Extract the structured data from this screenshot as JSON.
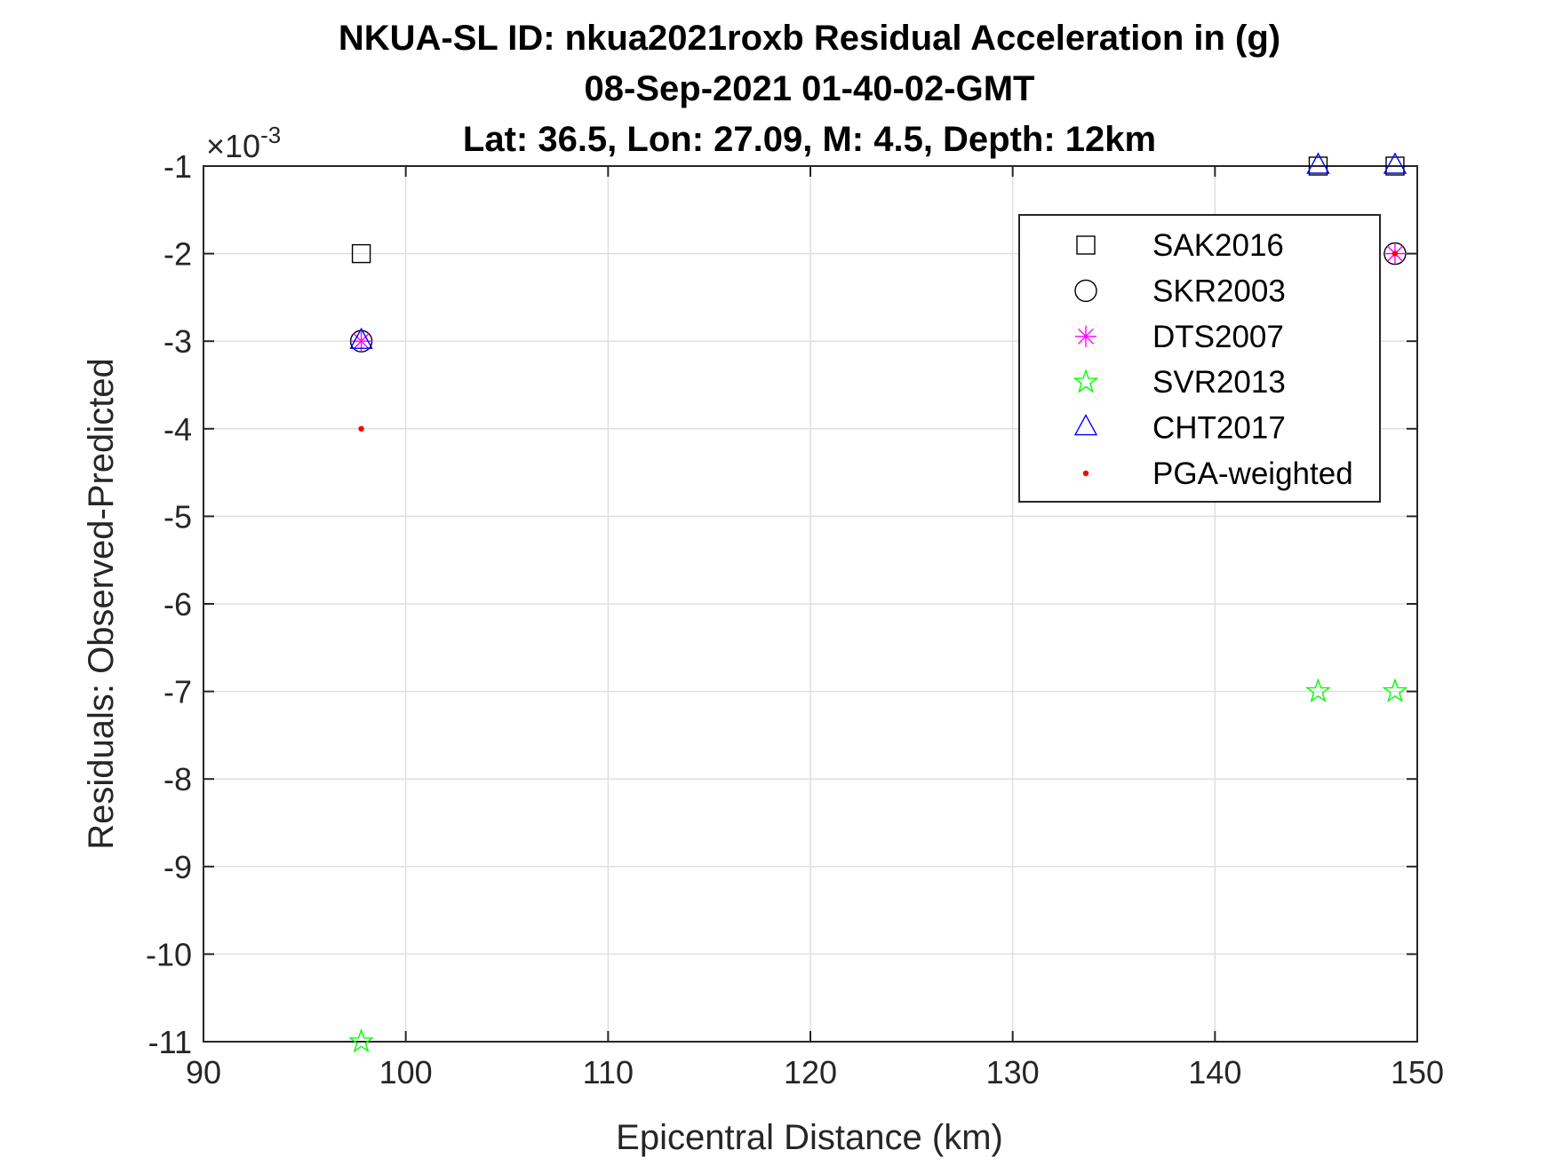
{
  "chart_data": {
    "type": "scatter",
    "title_lines": [
      "NKUA-SL ID: nkua2021roxb Residual Acceleration in (g)",
      "08-Sep-2021 01-40-02-GMT",
      "Lat: 36.5, Lon: 27.09, M: 4.5, Depth: 12km"
    ],
    "xlabel": "Epicentral Distance (km)",
    "ylabel": "Residuals: Observed-Predicted",
    "y_exponent_label": "×10",
    "y_exponent": "-3",
    "xlim": [
      90,
      150
    ],
    "ylim": [
      -11,
      -1
    ],
    "x_ticks": [
      90,
      100,
      110,
      120,
      130,
      140,
      150
    ],
    "y_ticks": [
      -1,
      -2,
      -3,
      -4,
      -5,
      -6,
      -7,
      -8,
      -9,
      -10,
      -11
    ],
    "y_scale_factor": 0.001,
    "grid": true,
    "legend_position": "top-right",
    "series": [
      {
        "name": "SAK2016",
        "marker": "square",
        "color": "#000000",
        "points": [
          [
            97.8,
            -2
          ],
          [
            145.1,
            -1
          ],
          [
            148.9,
            -1
          ]
        ]
      },
      {
        "name": "SKR2003",
        "marker": "circle",
        "color": "#000000",
        "points": [
          [
            97.8,
            -3
          ],
          [
            148.9,
            -2
          ]
        ]
      },
      {
        "name": "DTS2007",
        "marker": "asterisk",
        "color": "#ff00ff",
        "points": [
          [
            97.8,
            -3
          ],
          [
            148.9,
            -2
          ]
        ]
      },
      {
        "name": "SVR2013",
        "marker": "star",
        "color": "#00ff00",
        "points": [
          [
            97.8,
            -11
          ],
          [
            145.1,
            -7
          ],
          [
            148.9,
            -7
          ]
        ]
      },
      {
        "name": "CHT2017",
        "marker": "triangle",
        "color": "#0000ff",
        "points": [
          [
            97.8,
            -3
          ],
          [
            145.1,
            -1
          ],
          [
            148.9,
            -1
          ]
        ]
      },
      {
        "name": "PGA-weighted",
        "marker": "dot",
        "color": "#ff0000",
        "points": [
          [
            97.8,
            -4
          ],
          [
            148.9,
            -2
          ]
        ]
      }
    ]
  }
}
